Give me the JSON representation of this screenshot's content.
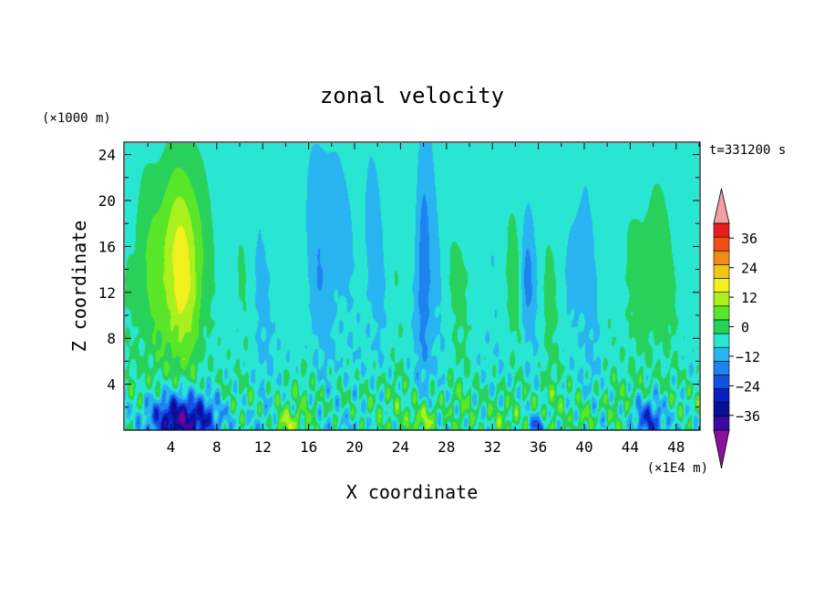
{
  "chart_data": {
    "type": "heatmap",
    "title": "zonal velocity",
    "xlabel": "X coordinate",
    "ylabel": "Z coordinate",
    "x_unit": "(×1E4 m)",
    "y_unit": "(×1000 m)",
    "time_label": "t=331200 s",
    "xlim": [
      0,
      50
    ],
    "ylim": [
      0,
      25
    ],
    "x_ticks": [
      4,
      8,
      12,
      16,
      20,
      24,
      28,
      32,
      36,
      40,
      44,
      48
    ],
    "y_ticks": [
      4,
      8,
      12,
      16,
      20,
      24
    ],
    "colorbar": {
      "levels": [
        -42,
        -36,
        -30,
        -24,
        -18,
        -12,
        -6,
        0,
        6,
        12,
        18,
        24,
        30,
        36,
        42
      ],
      "labels": [
        36,
        24,
        12,
        0,
        -12,
        -24,
        -36
      ],
      "colors": [
        "#80008f",
        "#3b0aa6",
        "#0b0f91",
        "#0a1fbf",
        "#1450e6",
        "#1e82f0",
        "#28b4f0",
        "#28e6d2",
        "#28d25a",
        "#5ae628",
        "#aaf01e",
        "#f0f01e",
        "#f0c814",
        "#f08c14",
        "#f05014",
        "#e61e1e",
        "#f0a0a0"
      ],
      "under_color": "#8a0f9c",
      "over_color": "#f0a0a0"
    },
    "field_features": [
      {
        "kind": "jet",
        "x": 4.5,
        "z": 14,
        "sx": 2.6,
        "sz": 9,
        "amp": 24
      },
      {
        "kind": "jet",
        "x": 45.5,
        "z": 13,
        "sx": 1.6,
        "sz": 9,
        "amp": 10
      },
      {
        "kind": "jet",
        "x": 30,
        "z": 13,
        "sx": 1.0,
        "sz": 7,
        "amp": 5
      },
      {
        "kind": "jet",
        "x": 34,
        "z": 13,
        "sx": 0.7,
        "sz": 7,
        "amp": 4
      },
      {
        "kind": "jet",
        "x": 37,
        "z": 12,
        "sx": 0.8,
        "sz": 8,
        "amp": 5
      },
      {
        "kind": "jet",
        "x": 48.5,
        "z": 11,
        "sx": 1.2,
        "sz": 8,
        "amp": 3
      },
      {
        "kind": "low",
        "x": 5,
        "z": 1,
        "sx": 3.2,
        "sz": 2.2,
        "amp": -36
      },
      {
        "kind": "low",
        "x": 45.5,
        "z": 1,
        "sx": 1.3,
        "sz": 1.8,
        "amp": -22
      },
      {
        "kind": "low",
        "x": 26,
        "z": 14,
        "sx": 0.6,
        "sz": 9,
        "amp": -12
      },
      {
        "kind": "low",
        "x": 35,
        "z": 13,
        "sx": 0.5,
        "sz": 4,
        "amp": -9
      },
      {
        "kind": "low",
        "x": 39,
        "z": 14,
        "sx": 0.7,
        "sz": 4,
        "amp": -10
      },
      {
        "kind": "low",
        "x": 18,
        "z": 16,
        "sx": 3,
        "sz": 8,
        "amp": -5
      },
      {
        "kind": "high",
        "x": 26,
        "z": 0.7,
        "sx": 1.2,
        "sz": 1.5,
        "amp": 18
      },
      {
        "kind": "high",
        "x": 14,
        "z": 0.5,
        "sx": 1.2,
        "sz": 1.2,
        "amp": 14
      },
      {
        "kind": "high",
        "x": 33,
        "z": 0.7,
        "sx": 1.3,
        "sz": 1.5,
        "amp": 10
      },
      {
        "kind": "high",
        "x": 40,
        "z": 0.7,
        "sx": 1.0,
        "sz": 1.5,
        "amp": 10
      },
      {
        "kind": "low",
        "x": 36,
        "z": 0.4,
        "sx": 0.6,
        "sz": 1.0,
        "amp": -20
      }
    ]
  }
}
